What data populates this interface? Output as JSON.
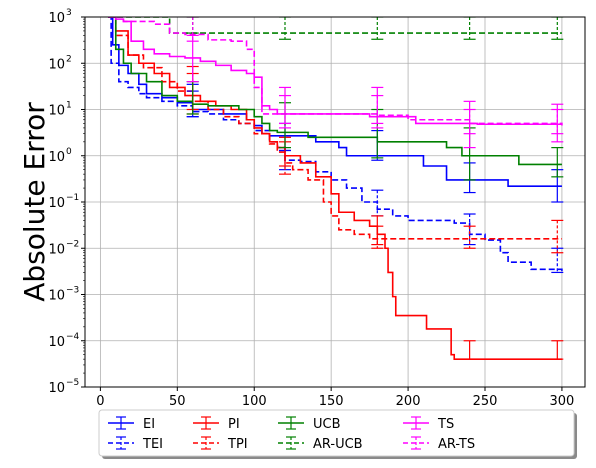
{
  "chart_data": {
    "type": "line",
    "title": "",
    "xlabel": "",
    "ylabel": "Absolute Error",
    "xlim": [
      -10,
      315
    ],
    "ylim": [
      1e-05,
      1000
    ],
    "yscale": "log",
    "grid": true,
    "legend": "bottom-outside",
    "x_ticks": [
      0,
      50,
      100,
      150,
      200,
      250,
      300
    ],
    "x_tick_labels": [
      "0",
      "50",
      "100",
      "150",
      "200",
      "250",
      "300"
    ],
    "y_ticks": [
      1e-05,
      0.0001,
      0.001,
      0.01,
      0.1,
      1,
      10,
      100,
      1000
    ],
    "y_tick_bases": [
      "10",
      "10",
      "10",
      "10",
      "10",
      "10",
      "10",
      "10",
      "10"
    ],
    "y_tick_exps": [
      "−5",
      "−4",
      "−3",
      "−2",
      "−1",
      "0",
      "1",
      "2",
      "3"
    ],
    "series": [
      {
        "name": "EI",
        "color": "#0000ff",
        "dash": "solid",
        "points": [
          [
            5,
            1000
          ],
          [
            8,
            250
          ],
          [
            12,
            90
          ],
          [
            18,
            60
          ],
          [
            25,
            35
          ],
          [
            30,
            22
          ],
          [
            40,
            18
          ],
          [
            50,
            14
          ],
          [
            60,
            10
          ],
          [
            70,
            10
          ],
          [
            80,
            8
          ],
          [
            95,
            6
          ],
          [
            100,
            4.5
          ],
          [
            105,
            3
          ],
          [
            110,
            2.7
          ],
          [
            130,
            2.7
          ],
          [
            140,
            2.0
          ],
          [
            155,
            1.5
          ],
          [
            160,
            1.0
          ],
          [
            200,
            1.0
          ],
          [
            210,
            0.6
          ],
          [
            225,
            0.3
          ],
          [
            260,
            0.3
          ],
          [
            265,
            0.22
          ],
          [
            300,
            0.22
          ]
        ],
        "errorbars": [
          [
            60,
            10,
            35,
            7
          ],
          [
            120,
            2.6,
            5,
            1.3
          ],
          [
            180,
            1.5,
            3.5,
            0.8
          ],
          [
            240,
            0.3,
            0.7,
            0.16
          ],
          [
            297,
            0.22,
            0.5,
            0.1
          ]
        ]
      },
      {
        "name": "TEI",
        "color": "#0000ff",
        "dash": "dashed",
        "points": [
          [
            5,
            1000
          ],
          [
            7,
            100
          ],
          [
            12,
            40
          ],
          [
            18,
            30
          ],
          [
            25,
            22
          ],
          [
            30,
            18
          ],
          [
            40,
            15
          ],
          [
            50,
            12
          ],
          [
            60,
            9
          ],
          [
            70,
            8
          ],
          [
            80,
            6
          ],
          [
            90,
            5
          ],
          [
            100,
            3.5
          ],
          [
            110,
            2
          ],
          [
            115,
            1.5
          ],
          [
            120,
            0.8
          ],
          [
            130,
            0.75
          ],
          [
            140,
            0.45
          ],
          [
            150,
            0.3
          ],
          [
            160,
            0.2
          ],
          [
            170,
            0.1
          ],
          [
            180,
            0.07
          ],
          [
            190,
            0.05
          ],
          [
            200,
            0.04
          ],
          [
            230,
            0.035
          ],
          [
            240,
            0.02
          ],
          [
            250,
            0.015
          ],
          [
            260,
            0.008
          ],
          [
            265,
            0.005
          ],
          [
            280,
            0.0035
          ],
          [
            300,
            0.003
          ]
        ],
        "errorbars": [
          [
            60,
            9,
            25,
            7
          ],
          [
            120,
            0.8,
            1.3,
            0.5
          ],
          [
            180,
            0.07,
            0.18,
            0.05
          ],
          [
            240,
            0.02,
            0.055,
            0.012
          ],
          [
            297,
            0.003,
            0.01,
            0.003
          ]
        ]
      },
      {
        "name": "PI",
        "color": "#ff0000",
        "dash": "solid",
        "points": [
          [
            5,
            1000
          ],
          [
            10,
            500
          ],
          [
            18,
            150
          ],
          [
            25,
            100
          ],
          [
            35,
            60
          ],
          [
            45,
            30
          ],
          [
            55,
            20
          ],
          [
            65,
            15
          ],
          [
            75,
            12
          ],
          [
            85,
            10
          ],
          [
            95,
            6
          ],
          [
            100,
            4
          ],
          [
            105,
            3
          ],
          [
            110,
            2
          ],
          [
            115,
            1.5
          ],
          [
            120,
            1.0
          ],
          [
            130,
            0.7
          ],
          [
            140,
            0.35
          ],
          [
            150,
            0.15
          ],
          [
            155,
            0.06
          ],
          [
            165,
            0.04
          ],
          [
            175,
            0.03
          ],
          [
            180,
            0.02
          ],
          [
            185,
            0.01
          ],
          [
            187,
            0.003
          ],
          [
            190,
            0.0009
          ],
          [
            192,
            0.00035
          ],
          [
            210,
            0.00035
          ],
          [
            212,
            0.00018
          ],
          [
            225,
            0.00018
          ],
          [
            228,
            5e-05
          ],
          [
            230,
            4e-05
          ],
          [
            300,
            4e-05
          ]
        ],
        "errorbars": [
          [
            60,
            18,
            85,
            10
          ],
          [
            120,
            1.0,
            2.5,
            0.6
          ],
          [
            180,
            0.02,
            0.05,
            0.012
          ],
          [
            240,
            4e-05,
            0.0001,
            4e-05
          ],
          [
            297,
            4e-05,
            0.0001,
            4e-05
          ]
        ]
      },
      {
        "name": "TPI",
        "color": "#ff0000",
        "dash": "dashed",
        "points": [
          [
            5,
            1000
          ],
          [
            10,
            400
          ],
          [
            18,
            150
          ],
          [
            28,
            80
          ],
          [
            40,
            40
          ],
          [
            50,
            25
          ],
          [
            60,
            15
          ],
          [
            70,
            10
          ],
          [
            80,
            7
          ],
          [
            90,
            5
          ],
          [
            100,
            3
          ],
          [
            110,
            1.8
          ],
          [
            115,
            1.2
          ],
          [
            120,
            0.7
          ],
          [
            125,
            0.5
          ],
          [
            135,
            0.3
          ],
          [
            145,
            0.1
          ],
          [
            150,
            0.05
          ],
          [
            155,
            0.025
          ],
          [
            165,
            0.02
          ],
          [
            175,
            0.016
          ],
          [
            200,
            0.016
          ],
          [
            300,
            0.016
          ]
        ],
        "errorbars": [
          [
            60,
            15,
            60,
            8
          ],
          [
            120,
            0.7,
            2,
            0.4
          ],
          [
            180,
            0.016,
            0.03,
            0.01
          ],
          [
            240,
            0.016,
            0.03,
            0.01
          ],
          [
            297,
            0.016,
            0.04,
            0.008
          ]
        ]
      },
      {
        "name": "UCB",
        "color": "#008000",
        "dash": "solid",
        "points": [
          [
            5,
            1000
          ],
          [
            10,
            200
          ],
          [
            15,
            100
          ],
          [
            20,
            60
          ],
          [
            30,
            40
          ],
          [
            40,
            20
          ],
          [
            50,
            15
          ],
          [
            60,
            13
          ],
          [
            70,
            12
          ],
          [
            80,
            12
          ],
          [
            90,
            10
          ],
          [
            100,
            7
          ],
          [
            105,
            5
          ],
          [
            110,
            3.5
          ],
          [
            115,
            3.2
          ],
          [
            130,
            3.2
          ],
          [
            135,
            2.5
          ],
          [
            175,
            2.5
          ],
          [
            180,
            2.0
          ],
          [
            220,
            2.0
          ],
          [
            225,
            1.5
          ],
          [
            235,
            1.0
          ],
          [
            270,
            1.0
          ],
          [
            272,
            0.65
          ],
          [
            300,
            0.65
          ]
        ],
        "errorbars": [
          [
            60,
            13,
            40,
            8
          ],
          [
            120,
            3.2,
            14,
            1.5
          ],
          [
            180,
            2.0,
            10,
            0.9
          ],
          [
            240,
            1.0,
            4,
            0.3
          ],
          [
            297,
            0.65,
            1.5,
            0.35
          ]
        ]
      },
      {
        "name": "AR-UCB",
        "color": "#008000",
        "dash": "dashed",
        "points": [
          [
            5,
            1000
          ],
          [
            42,
            1000
          ],
          [
            45,
            450
          ],
          [
            300,
            450
          ]
        ],
        "errorbars": [
          [
            60,
            450,
            1000,
            450
          ],
          [
            120,
            450,
            1000,
            330
          ],
          [
            180,
            450,
            1000,
            330
          ],
          [
            240,
            450,
            1000,
            330
          ],
          [
            297,
            450,
            1000,
            330
          ]
        ]
      },
      {
        "name": "TS",
        "color": "#ff00ff",
        "dash": "solid",
        "points": [
          [
            5,
            1000
          ],
          [
            10,
            900
          ],
          [
            15,
            800
          ],
          [
            20,
            300
          ],
          [
            28,
            200
          ],
          [
            35,
            160
          ],
          [
            45,
            140
          ],
          [
            55,
            130
          ],
          [
            65,
            110
          ],
          [
            75,
            90
          ],
          [
            85,
            70
          ],
          [
            95,
            60
          ],
          [
            100,
            50
          ],
          [
            105,
            12
          ],
          [
            110,
            10
          ],
          [
            115,
            8
          ],
          [
            140,
            8
          ],
          [
            160,
            8
          ],
          [
            175,
            7
          ],
          [
            200,
            7
          ],
          [
            205,
            5
          ],
          [
            240,
            5
          ],
          [
            245,
            4.8
          ],
          [
            300,
            4.8
          ]
        ],
        "errorbars": [
          [
            60,
            130,
            400,
            40
          ],
          [
            120,
            8,
            30,
            5
          ],
          [
            180,
            7,
            30,
            5
          ],
          [
            240,
            5,
            15,
            1.5
          ],
          [
            297,
            4.8,
            13,
            2
          ]
        ]
      },
      {
        "name": "AR-TS",
        "color": "#ff00ff",
        "dash": "dashed",
        "points": [
          [
            5,
            1000
          ],
          [
            12,
            1000
          ],
          [
            15,
            800
          ],
          [
            25,
            800
          ],
          [
            35,
            700
          ],
          [
            45,
            450
          ],
          [
            55,
            420
          ],
          [
            70,
            320
          ],
          [
            85,
            300
          ],
          [
            95,
            200
          ],
          [
            100,
            30
          ],
          [
            105,
            8
          ],
          [
            120,
            8
          ],
          [
            180,
            7.5
          ],
          [
            200,
            6
          ],
          [
            240,
            5
          ],
          [
            300,
            4.5
          ]
        ],
        "errorbars": [
          [
            60,
            420,
            1000,
            300
          ],
          [
            120,
            8,
            20,
            4
          ],
          [
            180,
            7.5,
            20,
            4
          ],
          [
            240,
            5,
            10,
            3
          ],
          [
            297,
            4.5,
            10,
            3
          ]
        ]
      }
    ]
  }
}
